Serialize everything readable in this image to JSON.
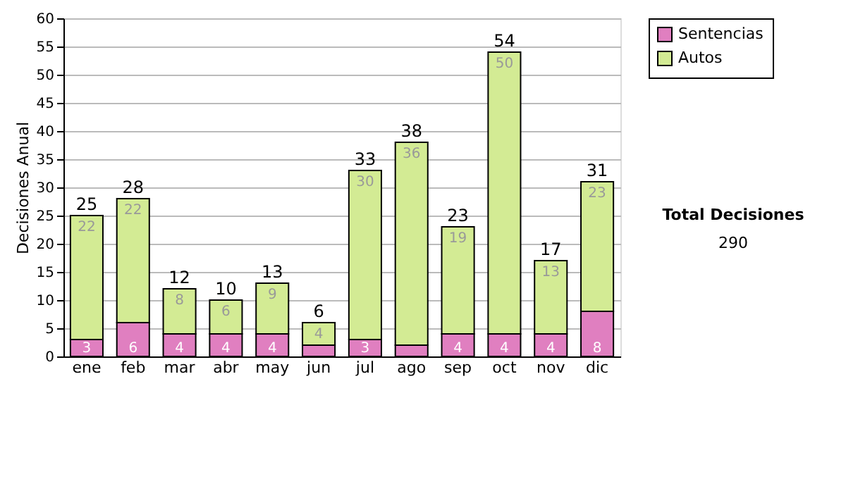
{
  "chart_data": {
    "type": "bar",
    "stacked": true,
    "ylabel": "Decisiones Anual",
    "categories": [
      "ene",
      "feb",
      "mar",
      "abr",
      "may",
      "jun",
      "jul",
      "ago",
      "sep",
      "oct",
      "nov",
      "dic"
    ],
    "series": [
      {
        "name": "Sentencias",
        "color": "#e07fc0",
        "values": [
          3,
          6,
          4,
          4,
          4,
          2,
          3,
          2,
          4,
          4,
          4,
          8
        ],
        "value_labels": [
          "3",
          "6",
          "4",
          "4",
          "4",
          null,
          "3",
          null,
          "4",
          "4",
          "4",
          "8"
        ]
      },
      {
        "name": "Autos",
        "color": "#d3eb94",
        "values": [
          22,
          22,
          8,
          6,
          9,
          4,
          30,
          36,
          19,
          50,
          13,
          23
        ],
        "value_labels": [
          "22",
          "22",
          "8",
          "6",
          "9",
          "4",
          "30",
          "36",
          "19",
          "50",
          "13",
          "23"
        ]
      }
    ],
    "totals": [
      "25",
      "28",
      "12",
      "10",
      "13",
      "6",
      "33",
      "38",
      "23",
      "54",
      "17",
      "31"
    ],
    "ylim": [
      0,
      60
    ],
    "yticks": [
      0,
      5,
      10,
      15,
      20,
      25,
      30,
      35,
      40,
      45,
      50,
      55,
      60
    ],
    "grid": "y",
    "legend": "right",
    "annotations": [
      "Total Decisiones",
      "290"
    ]
  }
}
